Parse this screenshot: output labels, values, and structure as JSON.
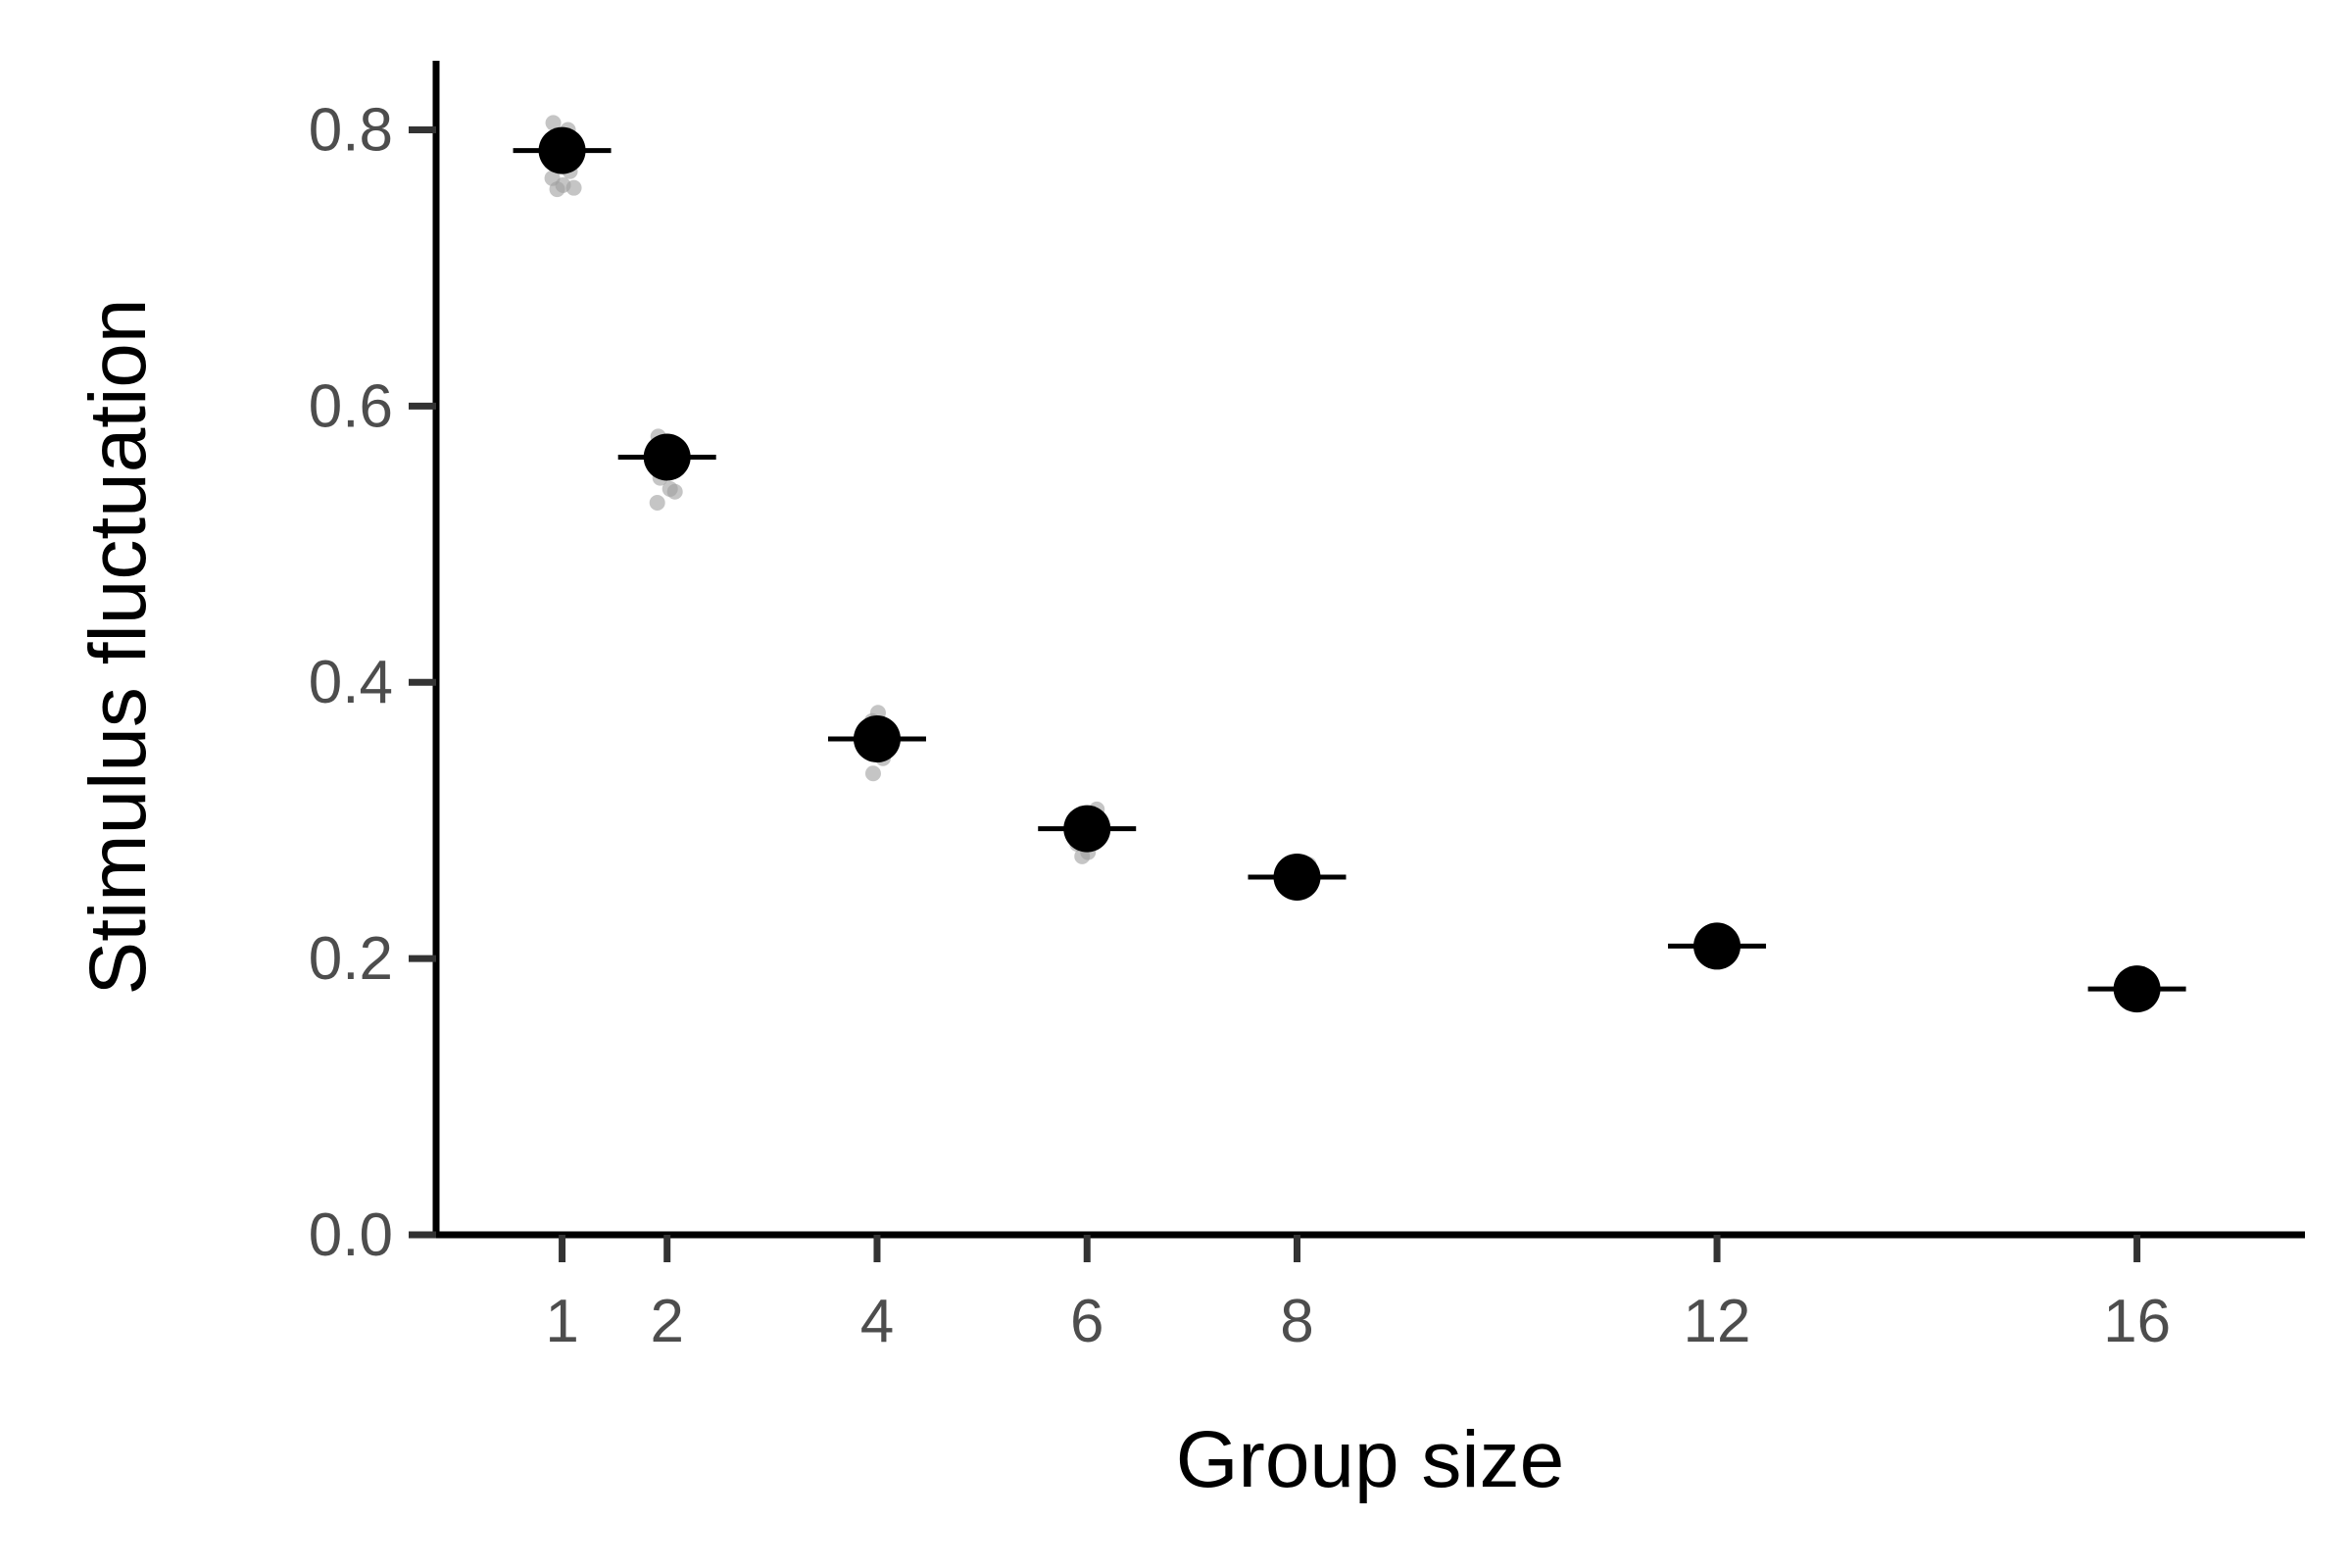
{
  "chart_data": {
    "type": "scatter",
    "title": "",
    "xlabel": "Group size",
    "ylabel": "Stimulus fluctuation",
    "x_ticks": [
      1,
      2,
      4,
      6,
      8,
      12,
      16
    ],
    "x_tick_labels": [
      "1",
      "2",
      "4",
      "6",
      "8",
      "12",
      "16"
    ],
    "y_ticks": [
      0.0,
      0.2,
      0.4,
      0.6,
      0.8
    ],
    "y_tick_labels": [
      "0.0",
      "0.2",
      "0.4",
      "0.6",
      "0.8"
    ],
    "xlim": [
      -0.2,
      17.6
    ],
    "ylim": [
      0.0,
      0.85
    ],
    "grid": false,
    "legend": "none",
    "colors": {
      "mean_point": "#000000",
      "replicate_points": "#9e9e9e",
      "axis": "#000000",
      "tick_label": "#4d4d4d"
    },
    "series": [
      {
        "role": "mean",
        "x": [
          1,
          2,
          4,
          6,
          8,
          12,
          16
        ],
        "y": [
          0.785,
          0.563,
          0.359,
          0.294,
          0.259,
          0.209,
          0.178
        ]
      },
      {
        "role": "replicates",
        "points": [
          [
            1,
            0.805
          ],
          [
            1,
            0.8
          ],
          [
            1,
            0.795
          ],
          [
            1,
            0.79
          ],
          [
            1,
            0.78
          ],
          [
            1,
            0.775
          ],
          [
            1,
            0.77
          ],
          [
            1,
            0.765
          ],
          [
            1,
            0.76
          ],
          [
            1,
            0.757
          ],
          [
            1,
            0.758
          ],
          [
            2,
            0.578
          ],
          [
            2,
            0.572
          ],
          [
            2,
            0.568
          ],
          [
            2,
            0.555
          ],
          [
            2,
            0.548
          ],
          [
            2,
            0.54
          ],
          [
            2,
            0.538
          ],
          [
            2,
            0.53
          ],
          [
            4,
            0.378
          ],
          [
            4,
            0.372
          ],
          [
            4,
            0.365
          ],
          [
            4,
            0.352
          ],
          [
            4,
            0.345
          ],
          [
            4,
            0.334
          ],
          [
            6,
            0.308
          ],
          [
            6,
            0.304
          ],
          [
            6,
            0.3
          ],
          [
            6,
            0.288
          ],
          [
            6,
            0.283
          ],
          [
            6,
            0.277
          ],
          [
            6,
            0.274
          ],
          [
            8,
            0.268
          ],
          [
            8,
            0.264
          ],
          [
            8,
            0.255
          ],
          [
            8,
            0.25
          ],
          [
            12,
            0.215
          ],
          [
            12,
            0.212
          ],
          [
            12,
            0.205
          ],
          [
            12,
            0.203
          ],
          [
            16,
            0.184
          ],
          [
            16,
            0.181
          ],
          [
            16,
            0.175
          ],
          [
            16,
            0.172
          ]
        ]
      }
    ]
  }
}
